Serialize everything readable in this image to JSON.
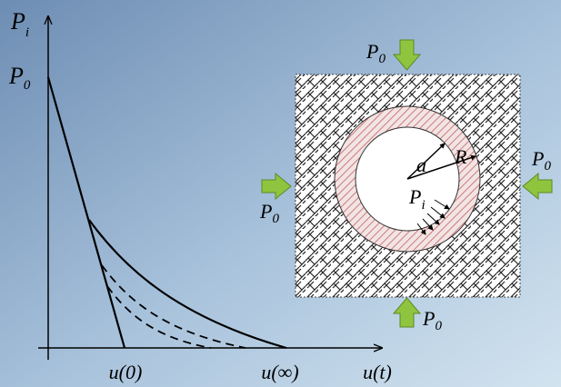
{
  "graph": {
    "y_axis_label": {
      "base": "P",
      "sub": "i"
    },
    "y_intercept_label": {
      "base": "P",
      "sub": "0"
    },
    "x_tick_labels": [
      "u(0)",
      "u(∞)"
    ],
    "x_axis_label": "u(t)"
  },
  "model": {
    "inner_radius_label": "a",
    "outer_radius_label": "R",
    "internal_pressure_label": {
      "base": "P",
      "sub": "i"
    },
    "far_field_pressure_labels": [
      {
        "base": "P",
        "sub": "0"
      },
      {
        "base": "P",
        "sub": "0"
      },
      {
        "base": "P",
        "sub": "0"
      },
      {
        "base": "P",
        "sub": "0"
      }
    ]
  }
}
